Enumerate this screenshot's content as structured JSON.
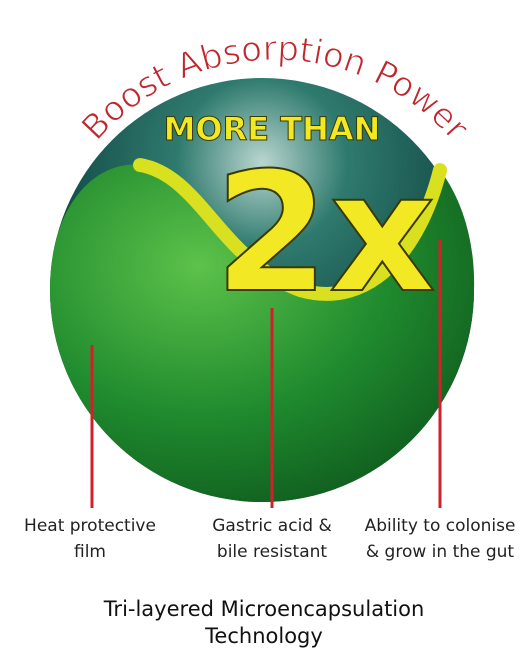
{
  "title_arc": "Boost Absorption Power",
  "headline": {
    "prefix": "MORE THAN",
    "value": "2x"
  },
  "layers": [
    {
      "label_lines": [
        "Heat protective",
        "film"
      ]
    },
    {
      "label_lines": [
        "Gastric acid &",
        "bile resistant"
      ]
    },
    {
      "label_lines": [
        "Ability to colonise",
        "& grow in the gut"
      ]
    }
  ],
  "footer_lines": [
    "Tri-layered Microencapsulation",
    "Technology"
  ]
}
